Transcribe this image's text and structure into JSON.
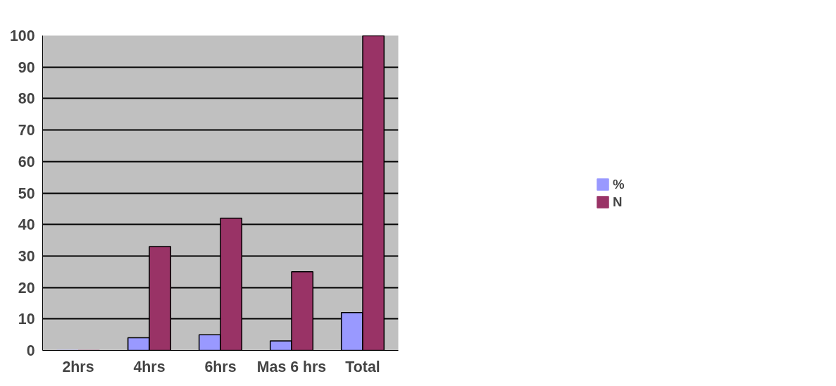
{
  "chart_data": {
    "type": "bar",
    "categories": [
      "2hrs",
      "4hrs",
      "6hrs",
      "Mas 6 hrs",
      "Total"
    ],
    "series": [
      {
        "name": "%",
        "color": "#9999ff",
        "values": [
          0,
          4,
          5,
          3,
          12
        ]
      },
      {
        "name": "N",
        "color": "#993366",
        "values": [
          0,
          33,
          42,
          25,
          100
        ]
      }
    ],
    "ylim": [
      0,
      100
    ],
    "yticks": [
      0,
      10,
      20,
      30,
      40,
      50,
      60,
      70,
      80,
      90,
      100
    ],
    "grid": "y",
    "legend": "right"
  }
}
